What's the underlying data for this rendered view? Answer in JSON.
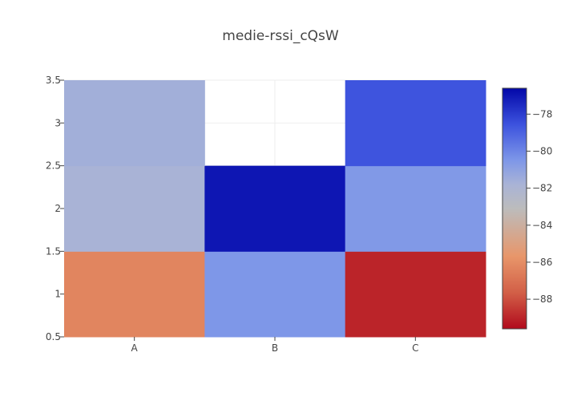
{
  "chart_data": {
    "type": "heatmap",
    "title": "medie-rssi_cQsW",
    "x_categories": [
      "A",
      "B",
      "C"
    ],
    "y_ticks": [
      "0.5",
      "1",
      "1.5",
      "2",
      "2.5",
      "3",
      "3.5"
    ],
    "ylim": [
      0.5,
      3.5
    ],
    "cells": [
      {
        "x": "A",
        "y": 1,
        "value": -86.3
      },
      {
        "x": "B",
        "y": 1,
        "value": -80.5
      },
      {
        "x": "C",
        "y": 1,
        "value": -89.0
      },
      {
        "x": "A",
        "y": 2,
        "value": -81.8
      },
      {
        "x": "B",
        "y": 2,
        "value": -77.0
      },
      {
        "x": "C",
        "y": 2,
        "value": -80.6
      },
      {
        "x": "A",
        "y": 3,
        "value": -81.6
      },
      {
        "x": "B",
        "y": 3,
        "value": null
      },
      {
        "x": "C",
        "y": 3,
        "value": -78.6
      }
    ],
    "colorbar": {
      "min": -89.6,
      "max": -76.6,
      "ticks": [
        "−78",
        "−80",
        "−82",
        "−84",
        "−86",
        "−88"
      ],
      "tick_values": [
        -78,
        -80,
        -82,
        -84,
        -86,
        -88
      ],
      "colorscale": [
        [
          0.0,
          "#b10a1c"
        ],
        [
          0.15,
          "#d25f47"
        ],
        [
          0.3,
          "#e8966a"
        ],
        [
          0.5,
          "#bcbcbc"
        ],
        [
          0.6,
          "#a9b3d6"
        ],
        [
          0.7,
          "#7e97e8"
        ],
        [
          0.85,
          "#3c52de"
        ],
        [
          1.0,
          "#0207a8"
        ]
      ]
    },
    "grid": true
  }
}
